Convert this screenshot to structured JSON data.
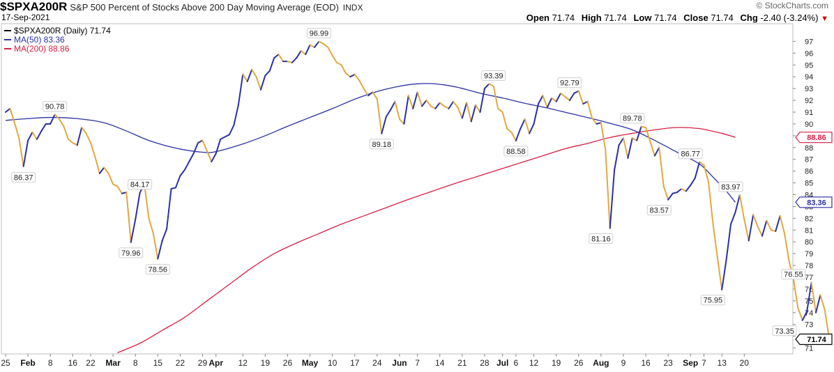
{
  "header": {
    "symbol": "$SPXA200R",
    "description": "S&P 500 Percent of Stocks Above 200 Day Moving Average (EOD)",
    "exchange": "INDX",
    "date": "17-Sep-2021",
    "brand": "© StockCharts.com",
    "open_label": "Open",
    "open": "71.74",
    "high_label": "High",
    "high": "71.74",
    "low_label": "Low",
    "low": "71.74",
    "close_label": "Close",
    "close": "71.74",
    "chg_label": "Chg",
    "chg": "-2.40 (-3.24%)",
    "chg_marker": "▼"
  },
  "legend": [
    {
      "text": "$SPXA200R (Daily) 71.74",
      "color": "#000000"
    },
    {
      "text": "MA(50) 83.36",
      "color": "#2b2fa3"
    },
    {
      "text": "MA(200) 88.86",
      "color": "#d81e45"
    }
  ],
  "right_tags": [
    {
      "text": "88.86",
      "value": 88.86,
      "color": "#d81e45"
    },
    {
      "text": "83.36",
      "value": 83.36,
      "color": "#2b2fa3"
    },
    {
      "text": "71.74",
      "value": 71.74,
      "color": "#000000"
    }
  ],
  "chart_data": {
    "type": "line",
    "ylim": [
      70.5,
      98.5
    ],
    "y_ticks": [
      71,
      72,
      73,
      74,
      75,
      76,
      77,
      78,
      79,
      80,
      81,
      82,
      83,
      84,
      85,
      86,
      87,
      88,
      89,
      90,
      91,
      92,
      93,
      94,
      95,
      96,
      97
    ],
    "x_ticks": [
      {
        "label": "25",
        "i": 0,
        "bold": false
      },
      {
        "label": "Feb",
        "i": 5,
        "bold": true
      },
      {
        "label": "8",
        "i": 10,
        "bold": false
      },
      {
        "label": "16",
        "i": 15,
        "bold": false
      },
      {
        "label": "22",
        "i": 19,
        "bold": false
      },
      {
        "label": "Mar",
        "i": 24,
        "bold": true
      },
      {
        "label": "8",
        "i": 29,
        "bold": false
      },
      {
        "label": "15",
        "i": 34,
        "bold": false
      },
      {
        "label": "22",
        "i": 39,
        "bold": false
      },
      {
        "label": "29",
        "i": 44,
        "bold": false
      },
      {
        "label": "Apr",
        "i": 47,
        "bold": true
      },
      {
        "label": "12",
        "i": 53,
        "bold": false
      },
      {
        "label": "19",
        "i": 58,
        "bold": false
      },
      {
        "label": "26",
        "i": 63,
        "bold": false
      },
      {
        "label": "May",
        "i": 68,
        "bold": true
      },
      {
        "label": "10",
        "i": 73,
        "bold": false
      },
      {
        "label": "17",
        "i": 78,
        "bold": false
      },
      {
        "label": "24",
        "i": 83,
        "bold": false
      },
      {
        "label": "Jun",
        "i": 88,
        "bold": true
      },
      {
        "label": "7",
        "i": 92,
        "bold": false
      },
      {
        "label": "14",
        "i": 97,
        "bold": false
      },
      {
        "label": "21",
        "i": 102,
        "bold": false
      },
      {
        "label": "28",
        "i": 107,
        "bold": false
      },
      {
        "label": "Jul",
        "i": 111,
        "bold": true
      },
      {
        "label": "6",
        "i": 114,
        "bold": false
      },
      {
        "label": "12",
        "i": 118,
        "bold": false
      },
      {
        "label": "19",
        "i": 123,
        "bold": false
      },
      {
        "label": "26",
        "i": 128,
        "bold": false
      },
      {
        "label": "Aug",
        "i": 133,
        "bold": true
      },
      {
        "label": "9",
        "i": 138,
        "bold": false
      },
      {
        "label": "16",
        "i": 143,
        "bold": false
      },
      {
        "label": "23",
        "i": 148,
        "bold": false
      },
      {
        "label": "Sep",
        "i": 153,
        "bold": true
      },
      {
        "label": "7",
        "i": 156,
        "bold": false
      },
      {
        "label": "13",
        "i": 160,
        "bold": false
      },
      {
        "label": "20",
        "i": 165,
        "bold": false
      }
    ],
    "series": [
      {
        "name": "$SPXA200R (Daily)",
        "up_color": "#2b2fa3",
        "down_color": "#e0a93e",
        "values": [
          91.0,
          91.3,
          90.1,
          88.8,
          86.4,
          88.6,
          89.3,
          88.7,
          89.4,
          90.0,
          90.0,
          90.8,
          90.4,
          89.8,
          88.7,
          88.4,
          88.2,
          89.7,
          89.2,
          88.4,
          87.2,
          85.8,
          86.3,
          85.8,
          84.9,
          84.7,
          84.1,
          84.2,
          79.96,
          81.9,
          84.17,
          84.9,
          82.0,
          80.7,
          78.56,
          80.1,
          81.1,
          84.5,
          84.6,
          85.6,
          86.1,
          86.8,
          87.5,
          88.4,
          88.6,
          87.7,
          86.8,
          87.5,
          88.7,
          88.9,
          89.1,
          89.9,
          91.6,
          94.2,
          93.6,
          94.6,
          94.0,
          92.9,
          94.1,
          94.5,
          95.6,
          95.9,
          95.3,
          95.3,
          95.2,
          95.6,
          96.2,
          95.9,
          96.7,
          96.5,
          96.99,
          96.8,
          96.5,
          95.8,
          95.2,
          95.0,
          94.3,
          94.0,
          94.2,
          93.7,
          93.0,
          92.4,
          92.7,
          92.1,
          89.18,
          90.6,
          91.2,
          91.9,
          90.4,
          90.0,
          92.4,
          91.3,
          92.7,
          91.5,
          92.0,
          91.5,
          91.3,
          91.8,
          91.5,
          91.3,
          91.9,
          91.4,
          90.5,
          91.8,
          90.2,
          91.6,
          91.0,
          93.0,
          93.39,
          93.2,
          91.3,
          91.0,
          89.6,
          89.3,
          88.58,
          89.6,
          90.4,
          89.2,
          90.0,
          91.7,
          92.4,
          91.4,
          92.2,
          91.9,
          92.6,
          92.3,
          92.0,
          92.6,
          92.79,
          91.7,
          91.9,
          90.5,
          90.0,
          90.1,
          87.8,
          81.16,
          86.1,
          88.2,
          88.8,
          87.1,
          88.8,
          88.6,
          89.78,
          89.7,
          88.5,
          87.3,
          88.0,
          84.7,
          83.57,
          84.1,
          84.2,
          84.5,
          84.3,
          84.8,
          85.4,
          86.77,
          86.5,
          85.1,
          81.6,
          78.7,
          75.95,
          78.5,
          81.5,
          82.5,
          83.97,
          81.9,
          80.1,
          82.3,
          81.3,
          80.5,
          81.8,
          81.0,
          80.9,
          82.2,
          80.7,
          78.4,
          76.8,
          74.4,
          73.35,
          74.1,
          76.55,
          74.0,
          75.5,
          74.2,
          71.74
        ]
      },
      {
        "name": "MA(50)",
        "color": "#2b2fa3",
        "anchors": [
          [
            0,
            90.3
          ],
          [
            5,
            90.45
          ],
          [
            10,
            90.55
          ],
          [
            16,
            90.45
          ],
          [
            22,
            90.1
          ],
          [
            27,
            89.4
          ],
          [
            32,
            88.6
          ],
          [
            38,
            87.95
          ],
          [
            44,
            87.6
          ],
          [
            47,
            87.65
          ],
          [
            53,
            88.3
          ],
          [
            58,
            89.0
          ],
          [
            63,
            89.8
          ],
          [
            68,
            90.55
          ],
          [
            73,
            91.3
          ],
          [
            78,
            92.1
          ],
          [
            83,
            92.75
          ],
          [
            88,
            93.2
          ],
          [
            92,
            93.4
          ],
          [
            96,
            93.4
          ],
          [
            101,
            93.1
          ],
          [
            106,
            92.6
          ],
          [
            111,
            92.2
          ],
          [
            116,
            91.75
          ],
          [
            121,
            91.35
          ],
          [
            126,
            90.9
          ],
          [
            131,
            90.45
          ],
          [
            135,
            90.05
          ],
          [
            140,
            89.5
          ],
          [
            145,
            88.6
          ],
          [
            150,
            87.6
          ],
          [
            155,
            86.6
          ],
          [
            158,
            85.5
          ],
          [
            161,
            84.3
          ],
          [
            163,
            83.36
          ]
        ]
      },
      {
        "name": "MA(200)",
        "color": "#d81e45",
        "anchors": [
          [
            25,
            70.6
          ],
          [
            30,
            71.4
          ],
          [
            35,
            72.5
          ],
          [
            40,
            73.6
          ],
          [
            45,
            75.0
          ],
          [
            50,
            76.4
          ],
          [
            55,
            77.8
          ],
          [
            60,
            79.0
          ],
          [
            65,
            79.9
          ],
          [
            70,
            80.7
          ],
          [
            75,
            81.5
          ],
          [
            80,
            82.2
          ],
          [
            85,
            82.9
          ],
          [
            90,
            83.6
          ],
          [
            95,
            84.25
          ],
          [
            100,
            84.9
          ],
          [
            105,
            85.5
          ],
          [
            110,
            86.1
          ],
          [
            115,
            86.7
          ],
          [
            120,
            87.3
          ],
          [
            125,
            87.9
          ],
          [
            130,
            88.35
          ],
          [
            135,
            88.85
          ],
          [
            140,
            89.2
          ],
          [
            145,
            89.5
          ],
          [
            150,
            89.7
          ],
          [
            155,
            89.6
          ],
          [
            160,
            89.2
          ],
          [
            163,
            88.86
          ]
        ]
      }
    ],
    "annotations": [
      {
        "text": "86.37",
        "i": 4,
        "value": 86.37,
        "pos": "below"
      },
      {
        "text": "90.78",
        "i": 11,
        "value": 90.78,
        "pos": "above"
      },
      {
        "text": "84.17",
        "i": 30,
        "value": 84.17,
        "pos": "above"
      },
      {
        "text": "79.96",
        "i": 28,
        "value": 79.96,
        "pos": "below"
      },
      {
        "text": "78.56",
        "i": 34,
        "value": 78.56,
        "pos": "below"
      },
      {
        "text": "96.99",
        "i": 70,
        "value": 96.99,
        "pos": "above"
      },
      {
        "text": "89.18",
        "i": 84,
        "value": 89.18,
        "pos": "below"
      },
      {
        "text": "93.39",
        "i": 109,
        "value": 93.39,
        "pos": "above"
      },
      {
        "text": "88.58",
        "i": 114,
        "value": 88.58,
        "pos": "below"
      },
      {
        "text": "92.79",
        "i": 126,
        "value": 92.79,
        "pos": "above"
      },
      {
        "text": "81.16",
        "i": 133,
        "value": 81.16,
        "pos": "below"
      },
      {
        "text": "89.78",
        "i": 140,
        "value": 89.78,
        "pos": "above"
      },
      {
        "text": "83.57",
        "i": 146,
        "value": 83.57,
        "pos": "below"
      },
      {
        "text": "86.77",
        "i": 153,
        "value": 86.77,
        "pos": "above"
      },
      {
        "text": "75.95",
        "i": 158,
        "value": 75.95,
        "pos": "below"
      },
      {
        "text": "83.97",
        "i": 162,
        "value": 83.97,
        "pos": "above"
      },
      {
        "text": "76.55",
        "i": 176,
        "value": 76.55,
        "pos": "above"
      },
      {
        "text": "73.35",
        "i": 174,
        "value": 73.35,
        "pos": "below"
      }
    ]
  }
}
